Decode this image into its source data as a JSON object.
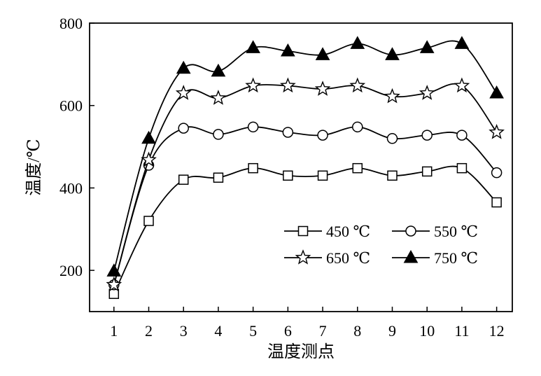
{
  "chart_data": {
    "type": "line",
    "xlabel": "温度测点",
    "ylabel": "温度/℃",
    "x": [
      1,
      2,
      3,
      4,
      5,
      6,
      7,
      8,
      9,
      10,
      11,
      12
    ],
    "xticks": [
      "1",
      "2",
      "3",
      "4",
      "5",
      "6",
      "7",
      "8",
      "9",
      "10",
      "11",
      "12"
    ],
    "yticks": [
      "200",
      "400",
      "600",
      "800"
    ],
    "ylim": [
      100,
      800
    ],
    "xlim": [
      0.3,
      12.45
    ],
    "grid": false,
    "legend_position": "bottom-right",
    "series": [
      {
        "name": "450 ℃",
        "marker": "square-open",
        "values": [
          143,
          320,
          420,
          425,
          448,
          430,
          430,
          448,
          430,
          440,
          448,
          365
        ]
      },
      {
        "name": "550 ℃",
        "marker": "circle-open",
        "values": [
          165,
          455,
          545,
          530,
          548,
          535,
          528,
          548,
          520,
          528,
          528,
          437
        ]
      },
      {
        "name": "650 ℃",
        "marker": "star-open",
        "values": [
          165,
          468,
          630,
          618,
          648,
          648,
          640,
          648,
          622,
          630,
          648,
          535
        ]
      },
      {
        "name": "750 ℃",
        "marker": "triangle-filled",
        "values": [
          198,
          520,
          690,
          683,
          740,
          732,
          723,
          750,
          723,
          740,
          750,
          630
        ]
      }
    ]
  }
}
